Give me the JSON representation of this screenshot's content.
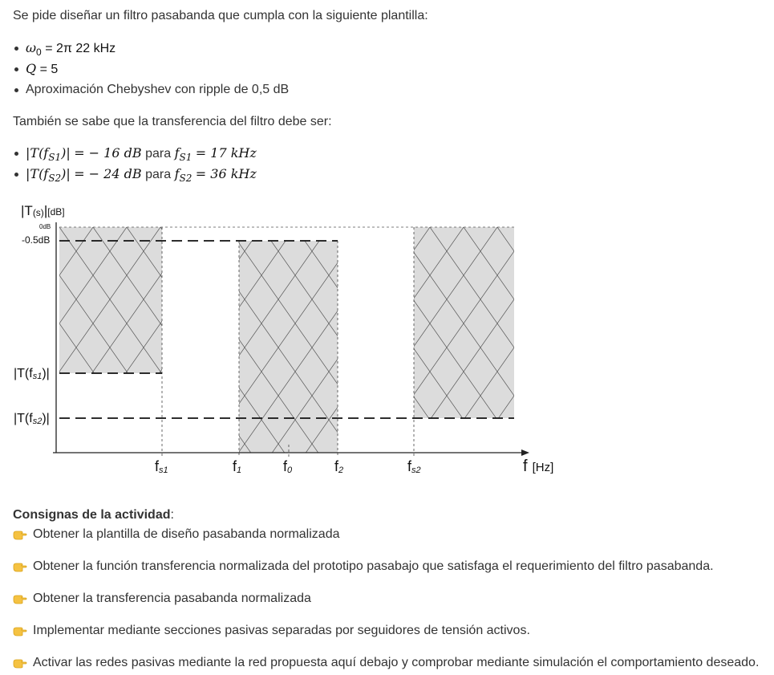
{
  "intro": "Se pide diseñar un filtro pasabanda que cumpla con la siguiente plantilla:",
  "spec": {
    "w0_sym": "ω",
    "w0_sub": "0",
    "w0_val": "= 2π 22 kHz",
    "q_sym": "Q",
    "q_val": "= 5",
    "approx": "Aproximación Chebyshev con ripple de 0,5 dB"
  },
  "transfer_intro": "También se sabe que la transferencia del filtro debe ser:",
  "transfer": [
    {
      "t_pre": "|T(f",
      "t_sub": "S1",
      "t_post": ")|",
      "t_val": "= − 16 dB",
      "para": "para",
      "f_sym": "f",
      "f_sub": "S1",
      "f_val": "= 17 kHz"
    },
    {
      "t_pre": "|T(f",
      "t_sub": "S2",
      "t_post": ")|",
      "t_val": "= − 24 dB",
      "para": "para",
      "f_sym": "f",
      "f_sub": "S2",
      "f_val": "= 36 kHz"
    }
  ],
  "diagram": {
    "y_title": "|T",
    "y_title_sub": "(s)",
    "y_title_post": "|",
    "y_title_unit": "[dB]",
    "label_0db": "0dB",
    "label_05db": "-0.5dB",
    "label_tfs1_pre": "|T(f",
    "label_tfs1_sub": "s1",
    "label_tfs1_post": ")|",
    "label_tfs2_pre": "|T(f",
    "label_tfs2_sub": "s2",
    "label_tfs2_post": ")|",
    "x_labels": [
      {
        "main": "f",
        "sub": "s1"
      },
      {
        "main": "f",
        "sub": "1"
      },
      {
        "main": "f",
        "sub": "0"
      },
      {
        "main": "f",
        "sub": "2"
      },
      {
        "main": "f",
        "sub": "s2"
      }
    ],
    "x_axis_main": "f",
    "x_axis_unit": "[Hz]",
    "hatch_color": "#dcdcdc"
  },
  "consignas": {
    "title": "Consignas de la actividad",
    "colon": ":",
    "icon": "pointing-hand-icon",
    "items": [
      "Obtener la plantilla de diseño pasabanda normalizada",
      "Obtener la función transferencia normalizada del prototipo pasabajo que satisfaga el requerimiento del filtro pasabanda.",
      "Obtener la transferencia pasabanda normalizada",
      "Implementar mediante secciones pasivas separadas por seguidores de tensión activos.",
      "Activar las redes pasivas mediante la red propuesta aquí debajo y comprobar mediante simulación el comportamiento deseado."
    ]
  }
}
